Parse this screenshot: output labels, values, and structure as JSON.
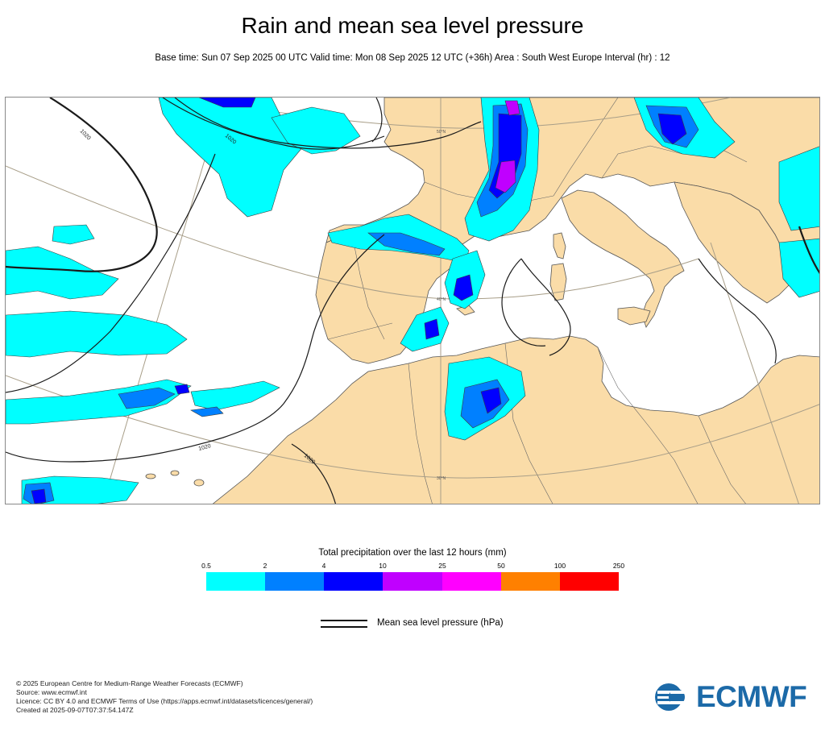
{
  "title": "Rain and mean sea level pressure",
  "subtitle": "Base time: Sun 07 Sep 2025 00 UTC Valid time: Mon 08 Sep 2025 12 UTC (+36h) Area : South West Europe Interval (hr) : 12",
  "map": {
    "area": "South West Europe",
    "isobar_labels": [
      "1020",
      "1020",
      "1020",
      "1020"
    ],
    "latitude_labels": [
      "50°N",
      "40°N",
      "30°N"
    ],
    "land_color": "#fadca8",
    "sea_color": "#ffffff",
    "isobar_color": "#1a1a1a"
  },
  "legend": {
    "precip_title": "Total precipitation over the last 12 hours (mm)",
    "thresholds": [
      "0.5",
      "2",
      "4",
      "10",
      "25",
      "50",
      "100",
      "250"
    ],
    "colors": [
      "#00ffff",
      "#0080ff",
      "#0000ff",
      "#c000ff",
      "#ff00ff",
      "#ff8000",
      "#ff0000"
    ],
    "mslp_label": "Mean sea level pressure (hPa)"
  },
  "footer": {
    "copyright": "© 2025 European Centre for Medium-Range Weather Forecasts (ECMWF)",
    "source": "Source: www.ecmwf.int",
    "licence": "Licence: CC BY 4.0 and ECMWF Terms of Use (https://apps.ecmwf.int/datasets/licences/general/)",
    "created": "Created at 2025-09-07T07:37:54.147Z"
  },
  "logo": {
    "text": "ECMWF",
    "color": "#1c6aa8"
  }
}
